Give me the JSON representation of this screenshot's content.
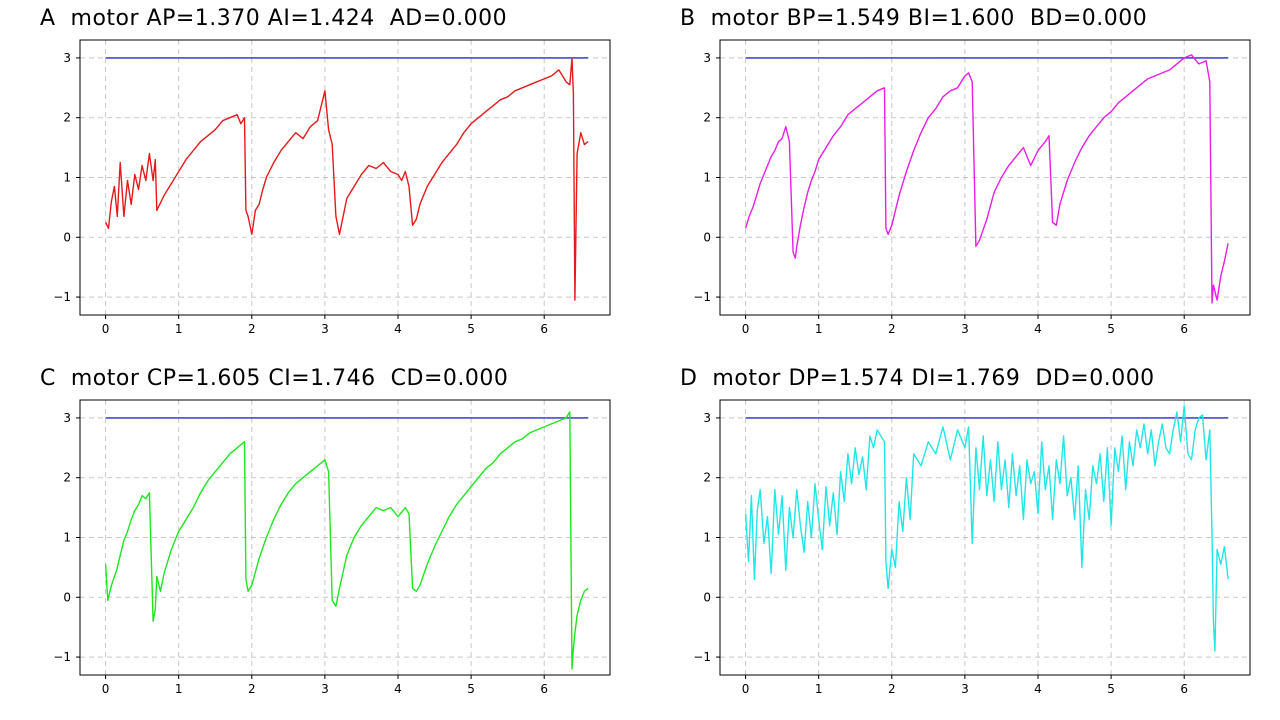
{
  "chart_data": [
    {
      "type": "line",
      "title": "A  motor AP=1.370 AI=1.424  AD=0.000",
      "xlim": [
        -0.35,
        6.9
      ],
      "ylim": [
        -1.3,
        3.3
      ],
      "xticks": [
        0,
        1,
        2,
        3,
        4,
        5,
        6
      ],
      "yticks": [
        -1,
        0,
        1,
        2,
        3
      ],
      "grid": true,
      "series": [
        {
          "color": "#2b2bd0",
          "x": [
            0,
            6.6
          ],
          "y": [
            3,
            3
          ]
        },
        {
          "color": "#e41a1c",
          "x": [
            0,
            0.04,
            0.08,
            0.12,
            0.16,
            0.2,
            0.25,
            0.3,
            0.35,
            0.4,
            0.45,
            0.5,
            0.55,
            0.6,
            0.65,
            0.68,
            0.7,
            0.8,
            0.9,
            1.0,
            1.1,
            1.2,
            1.3,
            1.4,
            1.5,
            1.6,
            1.7,
            1.8,
            1.85,
            1.9,
            1.92,
            1.95,
            2.0,
            2.05,
            2.1,
            2.15,
            2.2,
            2.3,
            2.4,
            2.5,
            2.6,
            2.7,
            2.8,
            2.9,
            3.0,
            3.05,
            3.1,
            3.15,
            3.2,
            3.3,
            3.4,
            3.5,
            3.6,
            3.7,
            3.8,
            3.9,
            4.0,
            4.05,
            4.1,
            4.15,
            4.2,
            4.25,
            4.3,
            4.4,
            4.5,
            4.6,
            4.7,
            4.8,
            4.9,
            5.0,
            5.1,
            5.2,
            5.3,
            5.4,
            5.5,
            5.6,
            5.7,
            5.8,
            5.9,
            6.0,
            6.1,
            6.2,
            6.3,
            6.35,
            6.38,
            6.4,
            6.42,
            6.45,
            6.5,
            6.55,
            6.6
          ],
          "y": [
            0.25,
            0.15,
            0.6,
            0.85,
            0.35,
            1.25,
            0.35,
            0.95,
            0.55,
            1.05,
            0.8,
            1.2,
            0.95,
            1.4,
            0.95,
            1.3,
            0.45,
            0.7,
            0.9,
            1.1,
            1.3,
            1.45,
            1.6,
            1.7,
            1.8,
            1.95,
            2.0,
            2.05,
            1.9,
            2.0,
            0.45,
            0.35,
            0.05,
            0.45,
            0.55,
            0.8,
            1.0,
            1.25,
            1.45,
            1.6,
            1.75,
            1.65,
            1.85,
            1.95,
            2.45,
            1.8,
            1.55,
            0.35,
            0.05,
            0.65,
            0.85,
            1.05,
            1.2,
            1.15,
            1.25,
            1.1,
            1.05,
            0.95,
            1.1,
            0.85,
            0.2,
            0.3,
            0.55,
            0.85,
            1.05,
            1.25,
            1.4,
            1.55,
            1.75,
            1.9,
            2.0,
            2.1,
            2.2,
            2.3,
            2.35,
            2.45,
            2.5,
            2.55,
            2.6,
            2.65,
            2.7,
            2.8,
            2.6,
            2.55,
            3.0,
            2.4,
            -1.05,
            1.4,
            1.75,
            1.55,
            1.6
          ]
        }
      ]
    },
    {
      "type": "line",
      "title": "B  motor BP=1.549 BI=1.600  BD=0.000",
      "xlim": [
        -0.35,
        6.9
      ],
      "ylim": [
        -1.3,
        3.3
      ],
      "xticks": [
        0,
        1,
        2,
        3,
        4,
        5,
        6
      ],
      "yticks": [
        -1,
        0,
        1,
        2,
        3
      ],
      "grid": true,
      "series": [
        {
          "color": "#2b2bd0",
          "x": [
            0,
            6.6
          ],
          "y": [
            3,
            3
          ]
        },
        {
          "color": "#e61fe6",
          "x": [
            0,
            0.05,
            0.1,
            0.15,
            0.2,
            0.25,
            0.3,
            0.35,
            0.4,
            0.45,
            0.5,
            0.55,
            0.6,
            0.65,
            0.68,
            0.7,
            0.75,
            0.8,
            0.85,
            0.9,
            0.95,
            1.0,
            1.1,
            1.2,
            1.3,
            1.4,
            1.5,
            1.6,
            1.7,
            1.8,
            1.9,
            1.92,
            1.95,
            2.0,
            2.1,
            2.2,
            2.3,
            2.4,
            2.5,
            2.6,
            2.7,
            2.8,
            2.9,
            3.0,
            3.05,
            3.1,
            3.15,
            3.2,
            3.3,
            3.4,
            3.5,
            3.6,
            3.7,
            3.8,
            3.9,
            4.0,
            4.1,
            4.15,
            4.2,
            4.25,
            4.3,
            4.4,
            4.5,
            4.6,
            4.7,
            4.8,
            4.9,
            5.0,
            5.1,
            5.2,
            5.3,
            5.4,
            5.5,
            5.6,
            5.7,
            5.8,
            5.9,
            6.0,
            6.1,
            6.2,
            6.3,
            6.35,
            6.38,
            6.4,
            6.45,
            6.5,
            6.55,
            6.6
          ],
          "y": [
            0.15,
            0.35,
            0.5,
            0.7,
            0.9,
            1.05,
            1.2,
            1.35,
            1.45,
            1.6,
            1.65,
            1.85,
            1.6,
            -0.25,
            -0.35,
            -0.15,
            0.2,
            0.5,
            0.75,
            0.95,
            1.1,
            1.3,
            1.5,
            1.7,
            1.85,
            2.05,
            2.15,
            2.25,
            2.35,
            2.45,
            2.5,
            0.15,
            0.05,
            0.2,
            0.7,
            1.1,
            1.45,
            1.75,
            2.0,
            2.15,
            2.35,
            2.45,
            2.5,
            2.7,
            2.75,
            2.6,
            -0.15,
            -0.05,
            0.3,
            0.75,
            1.0,
            1.2,
            1.35,
            1.5,
            1.2,
            1.45,
            1.6,
            1.7,
            0.25,
            0.2,
            0.55,
            0.95,
            1.25,
            1.5,
            1.7,
            1.85,
            2.0,
            2.1,
            2.25,
            2.35,
            2.45,
            2.55,
            2.65,
            2.7,
            2.75,
            2.8,
            2.9,
            3.0,
            3.05,
            2.9,
            2.95,
            2.6,
            -1.1,
            -0.8,
            -1.05,
            -0.65,
            -0.4,
            -0.1
          ]
        }
      ]
    },
    {
      "type": "line",
      "title": "C  motor CP=1.605 CI=1.746  CD=0.000",
      "xlim": [
        -0.35,
        6.9
      ],
      "ylim": [
        -1.3,
        3.3
      ],
      "xticks": [
        0,
        1,
        2,
        3,
        4,
        5,
        6
      ],
      "yticks": [
        -1,
        0,
        1,
        2,
        3
      ],
      "grid": true,
      "series": [
        {
          "color": "#2b2bd0",
          "x": [
            0,
            6.6
          ],
          "y": [
            3,
            3
          ]
        },
        {
          "color": "#1ee61e",
          "x": [
            0,
            0.03,
            0.08,
            0.15,
            0.2,
            0.25,
            0.3,
            0.35,
            0.4,
            0.45,
            0.5,
            0.55,
            0.6,
            0.65,
            0.68,
            0.7,
            0.75,
            0.8,
            0.85,
            0.9,
            0.95,
            1.0,
            1.1,
            1.2,
            1.3,
            1.4,
            1.5,
            1.6,
            1.7,
            1.8,
            1.9,
            1.92,
            1.95,
            2.0,
            2.1,
            2.2,
            2.3,
            2.4,
            2.5,
            2.6,
            2.7,
            2.8,
            2.9,
            3.0,
            3.05,
            3.1,
            3.15,
            3.2,
            3.3,
            3.4,
            3.5,
            3.6,
            3.7,
            3.8,
            3.9,
            4.0,
            4.1,
            4.15,
            4.2,
            4.25,
            4.3,
            4.4,
            4.5,
            4.6,
            4.7,
            4.8,
            4.9,
            5.0,
            5.1,
            5.2,
            5.3,
            5.4,
            5.5,
            5.6,
            5.7,
            5.8,
            5.9,
            6.0,
            6.1,
            6.2,
            6.3,
            6.35,
            6.38,
            6.4,
            6.42,
            6.45,
            6.5,
            6.55,
            6.6
          ],
          "y": [
            0.55,
            -0.05,
            0.2,
            0.45,
            0.7,
            0.95,
            1.1,
            1.3,
            1.45,
            1.55,
            1.7,
            1.65,
            1.75,
            -0.4,
            -0.2,
            0.35,
            0.1,
            0.4,
            0.6,
            0.8,
            0.95,
            1.1,
            1.3,
            1.5,
            1.75,
            1.95,
            2.1,
            2.25,
            2.4,
            2.5,
            2.6,
            0.3,
            0.1,
            0.2,
            0.65,
            1.0,
            1.3,
            1.55,
            1.75,
            1.9,
            2.0,
            2.1,
            2.2,
            2.3,
            2.1,
            -0.05,
            -0.15,
            0.15,
            0.7,
            1.0,
            1.2,
            1.35,
            1.5,
            1.45,
            1.5,
            1.35,
            1.5,
            1.4,
            0.15,
            0.1,
            0.2,
            0.55,
            0.85,
            1.1,
            1.35,
            1.55,
            1.7,
            1.85,
            2.0,
            2.15,
            2.25,
            2.4,
            2.5,
            2.6,
            2.65,
            2.75,
            2.8,
            2.85,
            2.9,
            2.95,
            3.0,
            3.1,
            -1.2,
            -0.85,
            -0.6,
            -0.3,
            -0.05,
            0.1,
            0.15
          ]
        }
      ]
    },
    {
      "type": "line",
      "title": "D  motor DP=1.574 DI=1.769  DD=0.000",
      "xlim": [
        -0.35,
        6.9
      ],
      "ylim": [
        -1.3,
        3.3
      ],
      "xticks": [
        0,
        1,
        2,
        3,
        4,
        5,
        6
      ],
      "yticks": [
        -1,
        0,
        1,
        2,
        3
      ],
      "grid": true,
      "series": [
        {
          "color": "#2b2bd0",
          "x": [
            0,
            6.6
          ],
          "y": [
            3,
            3
          ]
        },
        {
          "color": "#22e6e6",
          "x": [
            0,
            0.04,
            0.08,
            0.12,
            0.16,
            0.2,
            0.25,
            0.3,
            0.35,
            0.4,
            0.45,
            0.5,
            0.55,
            0.6,
            0.65,
            0.7,
            0.75,
            0.8,
            0.85,
            0.9,
            0.95,
            1.0,
            1.05,
            1.1,
            1.15,
            1.2,
            1.25,
            1.3,
            1.35,
            1.4,
            1.45,
            1.5,
            1.55,
            1.6,
            1.65,
            1.7,
            1.75,
            1.8,
            1.85,
            1.9,
            1.92,
            1.95,
            2.0,
            2.05,
            2.1,
            2.15,
            2.2,
            2.25,
            2.3,
            2.4,
            2.5,
            2.6,
            2.7,
            2.8,
            2.9,
            3.0,
            3.05,
            3.1,
            3.15,
            3.2,
            3.25,
            3.3,
            3.35,
            3.4,
            3.45,
            3.5,
            3.55,
            3.6,
            3.65,
            3.7,
            3.75,
            3.8,
            3.85,
            3.9,
            3.95,
            4.0,
            4.05,
            4.1,
            4.15,
            4.2,
            4.25,
            4.3,
            4.35,
            4.4,
            4.45,
            4.5,
            4.55,
            4.6,
            4.65,
            4.7,
            4.75,
            4.8,
            4.85,
            4.9,
            4.95,
            5.0,
            5.05,
            5.1,
            5.15,
            5.2,
            5.25,
            5.3,
            5.35,
            5.4,
            5.45,
            5.5,
            5.55,
            5.6,
            5.65,
            5.7,
            5.75,
            5.8,
            5.85,
            5.9,
            5.95,
            6.0,
            6.05,
            6.1,
            6.15,
            6.2,
            6.25,
            6.3,
            6.35,
            6.38,
            6.4,
            6.42,
            6.45,
            6.5,
            6.55,
            6.6
          ],
          "y": [
            1.4,
            0.6,
            1.7,
            0.3,
            1.45,
            1.8,
            0.9,
            1.35,
            0.4,
            1.8,
            1.05,
            1.7,
            0.45,
            1.5,
            1.0,
            1.8,
            1.2,
            0.75,
            1.6,
            1.0,
            1.9,
            1.3,
            0.8,
            1.85,
            1.2,
            1.75,
            1.05,
            2.1,
            1.6,
            2.4,
            1.9,
            2.5,
            2.05,
            2.35,
            1.8,
            2.7,
            2.5,
            2.8,
            2.7,
            2.6,
            0.6,
            0.15,
            0.8,
            0.5,
            1.6,
            1.1,
            2.0,
            1.3,
            2.4,
            2.2,
            2.6,
            2.4,
            2.85,
            2.3,
            2.8,
            2.5,
            2.85,
            0.9,
            2.5,
            1.8,
            2.7,
            1.7,
            2.3,
            1.6,
            2.6,
            1.8,
            2.3,
            1.5,
            2.4,
            1.7,
            2.2,
            1.3,
            2.3,
            1.9,
            2.1,
            1.4,
            2.6,
            1.8,
            2.2,
            1.3,
            2.3,
            1.9,
            2.7,
            1.7,
            2.0,
            1.3,
            2.2,
            0.5,
            1.8,
            1.3,
            2.2,
            1.9,
            2.4,
            1.6,
            2.5,
            1.2,
            2.5,
            2.1,
            2.7,
            1.8,
            2.6,
            2.2,
            2.8,
            2.5,
            2.9,
            2.4,
            2.8,
            2.2,
            2.6,
            2.9,
            2.5,
            2.4,
            2.8,
            3.1,
            2.6,
            3.2,
            2.4,
            2.3,
            2.8,
            3.0,
            3.05,
            2.3,
            2.8,
            1.05,
            -0.4,
            -0.9,
            0.8,
            0.55,
            0.85,
            0.3
          ]
        }
      ]
    }
  ]
}
